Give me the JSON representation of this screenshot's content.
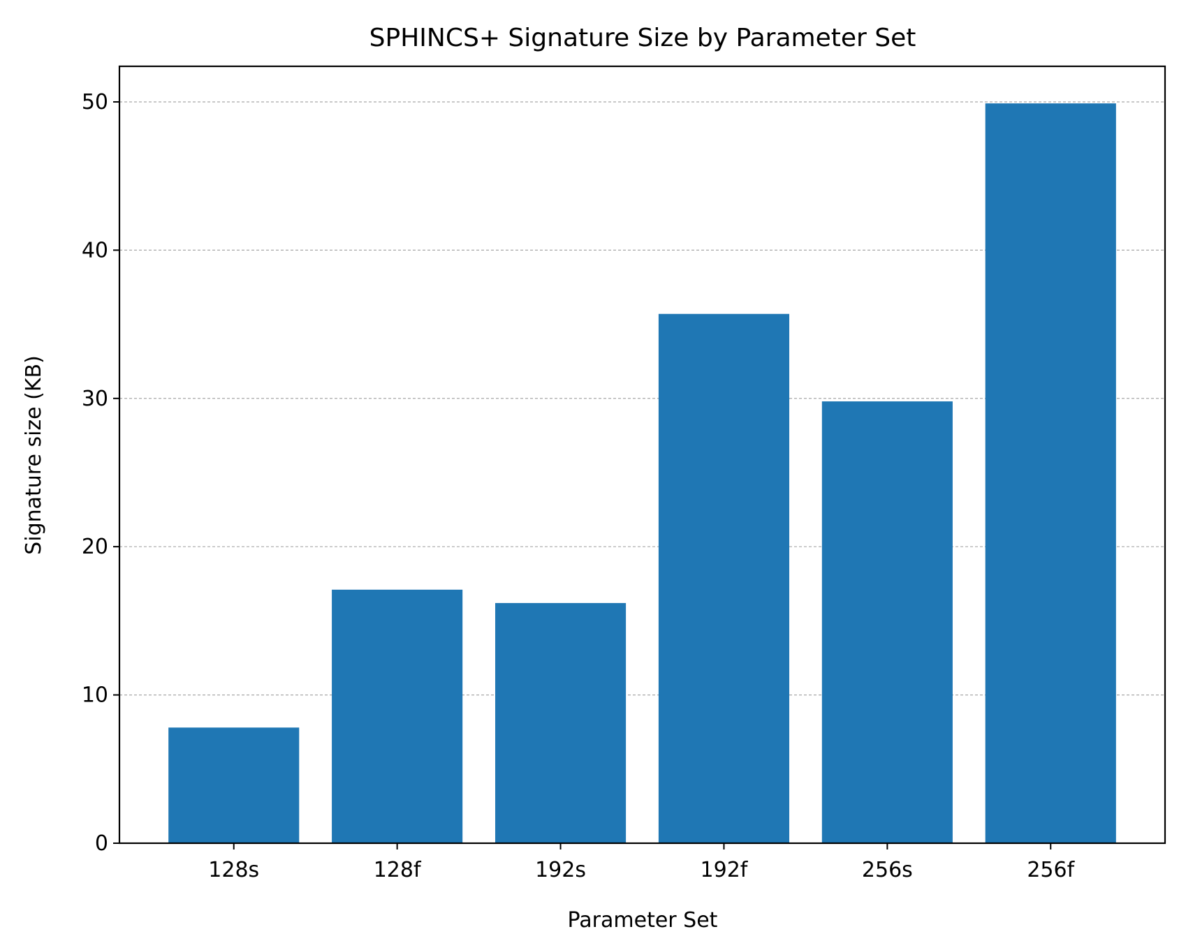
{
  "chart_data": {
    "type": "bar",
    "title": "SPHINCS+ Signature Size by Parameter Set",
    "xlabel": "Parameter Set",
    "ylabel": "Signature size (KB)",
    "categories": [
      "128s",
      "128f",
      "192s",
      "192f",
      "256s",
      "256f"
    ],
    "values": [
      7.8,
      17.1,
      16.2,
      35.7,
      29.8,
      49.9
    ],
    "ylim": [
      0,
      52.4
    ],
    "yticks": [
      0,
      10,
      20,
      30,
      40,
      50
    ],
    "grid": "y-dashed",
    "bar_color": "#1f77b4"
  }
}
